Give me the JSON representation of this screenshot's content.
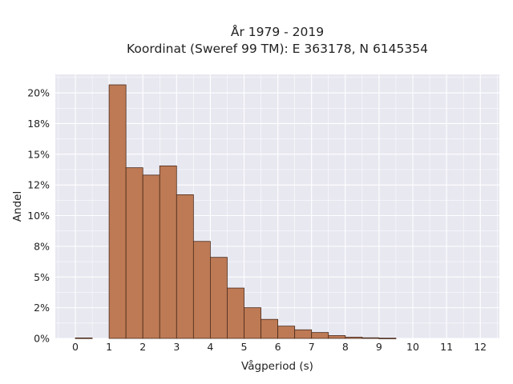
{
  "chart_data": {
    "type": "bar",
    "title": [
      "År 1979 - 2019",
      "Koordinat (Sweref 99 TM): E 363178, N 6145354"
    ],
    "xlabel": "Vågperiod (s)",
    "ylabel": "Andel",
    "bin_width": 0.5,
    "bins": [
      {
        "x": 0.0,
        "value": 0.0004
      },
      {
        "x": 1.0,
        "value": 0.2065
      },
      {
        "x": 1.5,
        "value": 0.139
      },
      {
        "x": 2.0,
        "value": 0.133
      },
      {
        "x": 2.5,
        "value": 0.1405
      },
      {
        "x": 3.0,
        "value": 0.117
      },
      {
        "x": 3.5,
        "value": 0.079
      },
      {
        "x": 4.0,
        "value": 0.066
      },
      {
        "x": 4.5,
        "value": 0.041
      },
      {
        "x": 5.0,
        "value": 0.025
      },
      {
        "x": 5.5,
        "value": 0.0155
      },
      {
        "x": 6.0,
        "value": 0.01
      },
      {
        "x": 6.5,
        "value": 0.007
      },
      {
        "x": 7.0,
        "value": 0.0048
      },
      {
        "x": 7.5,
        "value": 0.0023
      },
      {
        "x": 8.0,
        "value": 0.001
      },
      {
        "x": 8.5,
        "value": 0.0005
      },
      {
        "x": 9.0,
        "value": 0.0002
      }
    ],
    "xlim": [
      -0.5,
      12.5
    ],
    "ylim": [
      0,
      0.215
    ],
    "x_ticks": [
      0,
      1,
      2,
      3,
      4,
      5,
      6,
      7,
      8,
      9,
      10,
      11,
      12
    ],
    "x_tick_labels": [
      "0",
      "1",
      "2",
      "3",
      "4",
      "5",
      "6",
      "7",
      "8",
      "9",
      "10",
      "11",
      "12"
    ],
    "y_ticks": [
      0,
      0.025,
      0.05,
      0.075,
      0.1,
      0.125,
      0.15,
      0.175,
      0.2
    ],
    "y_tick_labels": [
      "0%",
      "2%",
      "5%",
      "8%",
      "10%",
      "12%",
      "15%",
      "18%",
      "20%"
    ],
    "grid": true,
    "colors": {
      "bar_fill": "#bd7a55",
      "bar_stroke": "#4a2a1a",
      "plot_background": "#e8e8f1",
      "grid": "#ffffff"
    }
  }
}
